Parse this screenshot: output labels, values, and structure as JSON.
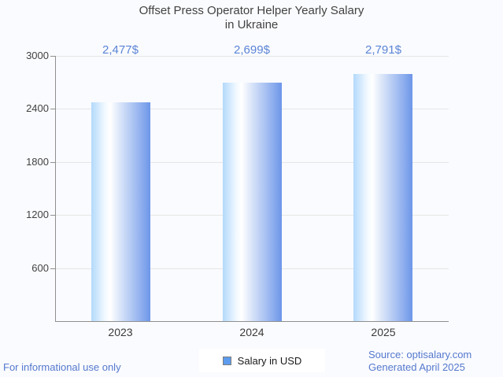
{
  "title": {
    "line1": "Offset Press Operator Helper Yearly Salary",
    "line2": "in Ukraine"
  },
  "chart_data": {
    "type": "bar",
    "title": "Offset Press Operator Helper Yearly Salary in Ukraine",
    "categories": [
      "2023",
      "2024",
      "2025"
    ],
    "values": [
      2477,
      2699,
      2791
    ],
    "value_labels": [
      "2,477$",
      "2,699$",
      "2,791$"
    ],
    "xlabel": "",
    "ylabel": "",
    "ylim": [
      0,
      3000
    ],
    "yticks": [
      600,
      1200,
      1800,
      2400,
      3000
    ],
    "grid": true,
    "legend_entries": [
      "Salary in USD"
    ],
    "legend_position": "bottom"
  },
  "legend": {
    "label": "Salary in USD"
  },
  "footer": {
    "left": "For informational use only",
    "source": "Source: optisalary.com",
    "generated": "Generated April 2025"
  },
  "colors": {
    "background": "#fafbfe",
    "title_text": "#424242",
    "axis_line": "#8f8f8f",
    "grid_line": "#e6e6e6",
    "tick_label": "#424242",
    "value_label": "#5b85d6",
    "bar_gradient_left": "#b3d9fb",
    "bar_gradient_mid": "#ffffff",
    "bar_gradient_right": "#6d96e9",
    "legend_swatch_fill": "#5d9ced",
    "legend_swatch_border": "#7d7d7d",
    "footer_text": "#5579ce"
  }
}
